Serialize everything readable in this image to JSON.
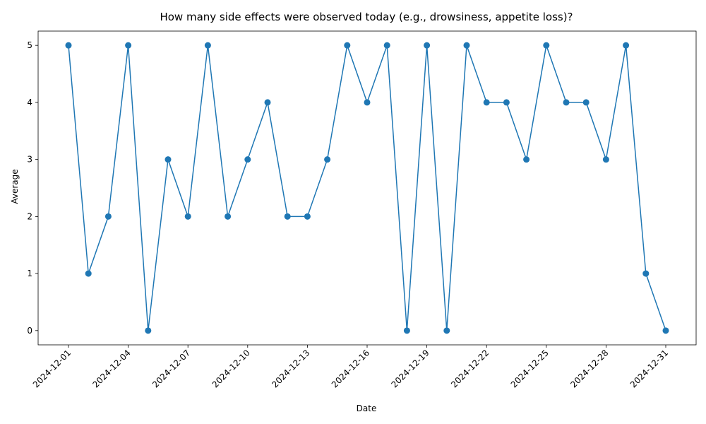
{
  "chart_data": {
    "type": "line",
    "title": "How many side effects were observed today (e.g., drowsiness, appetite loss)?",
    "xlabel": "Date",
    "ylabel": "Average",
    "x": [
      "2024-12-01",
      "2024-12-02",
      "2024-12-03",
      "2024-12-04",
      "2024-12-05",
      "2024-12-06",
      "2024-12-07",
      "2024-12-08",
      "2024-12-09",
      "2024-12-10",
      "2024-12-11",
      "2024-12-12",
      "2024-12-13",
      "2024-12-14",
      "2024-12-15",
      "2024-12-16",
      "2024-12-17",
      "2024-12-18",
      "2024-12-19",
      "2024-12-20",
      "2024-12-21",
      "2024-12-22",
      "2024-12-23",
      "2024-12-24",
      "2024-12-25",
      "2024-12-26",
      "2024-12-27",
      "2024-12-28",
      "2024-12-29",
      "2024-12-30",
      "2024-12-31"
    ],
    "values": [
      5,
      1,
      2,
      5,
      0,
      3,
      2,
      5,
      2,
      3,
      4,
      2,
      2,
      3,
      5,
      4,
      5,
      0,
      5,
      0,
      5,
      4,
      4,
      3,
      5,
      4,
      4,
      3,
      5,
      1,
      0
    ],
    "xticks": [
      "2024-12-01",
      "2024-12-04",
      "2024-12-07",
      "2024-12-10",
      "2024-12-13",
      "2024-12-16",
      "2024-12-19",
      "2024-12-22",
      "2024-12-25",
      "2024-12-28",
      "2024-12-31"
    ],
    "yticks": [
      0,
      1,
      2,
      3,
      4,
      5
    ],
    "ylim": [
      -0.25,
      5.25
    ],
    "line_color": "#1f77b4",
    "grid": false,
    "legend": "none"
  }
}
